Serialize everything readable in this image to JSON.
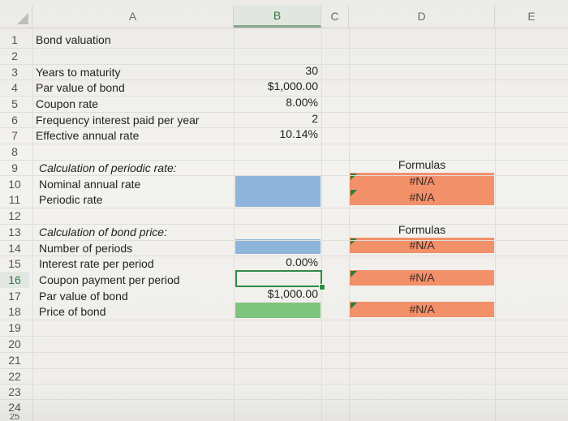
{
  "columns": [
    "A",
    "B",
    "C",
    "D",
    "E"
  ],
  "rows": [
    "1",
    "2",
    "3",
    "4",
    "5",
    "6",
    "7",
    "8",
    "9",
    "10",
    "11",
    "12",
    "13",
    "14",
    "15",
    "16",
    "17",
    "18",
    "19",
    "20",
    "21",
    "22",
    "23",
    "24",
    "25"
  ],
  "cells": {
    "a1": "Bond valuation",
    "a3": "Years to maturity",
    "a4": "Par value of bond",
    "a5": "Coupon rate",
    "a6": "Frequency interest paid per year",
    "a7": "Effective annual rate",
    "a9": "Calculation of periodic rate:",
    "a10": "Nominal annual rate",
    "a11": "Periodic rate",
    "a13": "Calculation of bond price:",
    "a14": "Number of periods",
    "a15": "Interest rate per period",
    "a16": "Coupon payment per period",
    "a17": "Par value of bond",
    "a18": "Price of bond",
    "b3": "30",
    "b4": "$1,000.00",
    "b5": "8.00%",
    "b6": "2",
    "b7": "10.14%",
    "b15": "0.00%",
    "b17": "$1,000.00",
    "d9": "Formulas",
    "d10": "#N/A",
    "d11": "#N/A",
    "d13": "Formulas",
    "d14": "#N/A",
    "d16": "#N/A",
    "d18": "#N/A"
  },
  "colors": {
    "input_fill": "#8fb4dc",
    "formula_fill": "#f2906a",
    "result_fill": "#7fc47c",
    "selection": "#2f8a44"
  },
  "selected_cell": "B16"
}
